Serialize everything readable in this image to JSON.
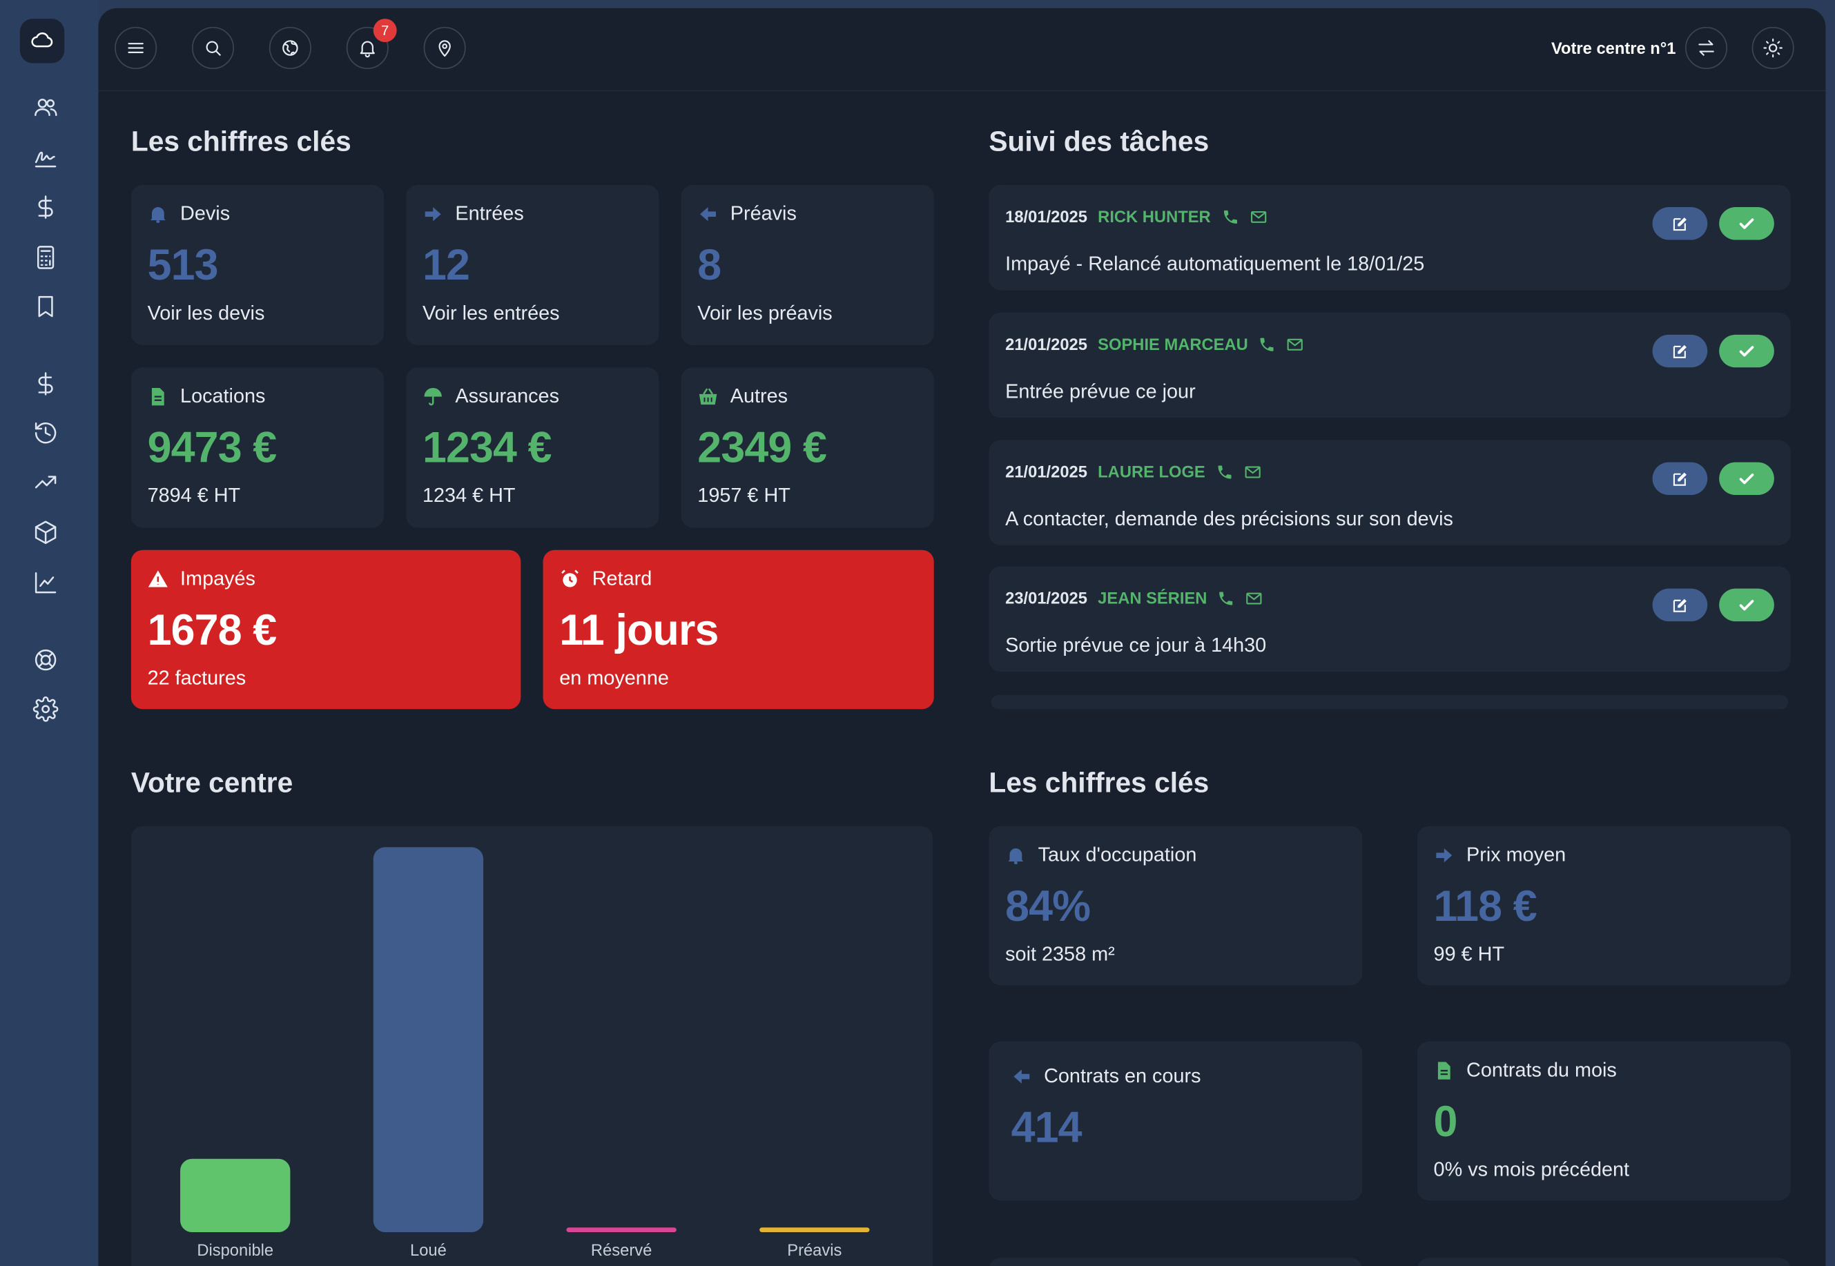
{
  "topbar": {
    "notifications_count": "7",
    "center_name": "Votre centre n°1"
  },
  "sections": {
    "key_figures_title": "Les chiffres clés",
    "tasks_title": "Suivi des tâches",
    "center_title": "Votre centre",
    "key_figures_title_2": "Les chiffres clés"
  },
  "kpis": [
    {
      "label": "Devis",
      "value": "513",
      "sub": "Voir les devis"
    },
    {
      "label": "Entrées",
      "value": "12",
      "sub": "Voir les entrées"
    },
    {
      "label": "Préavis",
      "value": "8",
      "sub": "Voir les préavis"
    },
    {
      "label": "Locations",
      "value": "9473 €",
      "sub": "7894 € HT"
    },
    {
      "label": "Assurances",
      "value": "1234 €",
      "sub": "1234 € HT"
    },
    {
      "label": "Autres",
      "value": "2349 €",
      "sub": "1957 € HT"
    },
    {
      "label": "Impayés",
      "value": "1678 €",
      "sub": "22 factures"
    },
    {
      "label": "Retard",
      "value": "11 jours",
      "sub": "en moyenne"
    }
  ],
  "tasks": [
    {
      "date": "18/01/2025",
      "name": "RICK HUNTER",
      "text": "Impayé - Relancé automatiquement le 18/01/25"
    },
    {
      "date": "21/01/2025",
      "name": "SOPHIE MARCEAU",
      "text": "Entrée prévue ce jour"
    },
    {
      "date": "21/01/2025",
      "name": "LAURE LOGE",
      "text": "A contacter, demande des précisions sur son devis"
    },
    {
      "date": "23/01/2025",
      "name": "JEAN SÉRIEN",
      "text": "Sortie prévue ce jour à 14h30"
    }
  ],
  "stats": [
    {
      "label": "Taux d'occupation",
      "value": "84%",
      "sub": "soit 2358 m²"
    },
    {
      "label": "Prix moyen",
      "value": "118 €",
      "sub": "99 € HT"
    },
    {
      "label": "Contrats en cours",
      "value": "414",
      "sub": ""
    },
    {
      "label": "Contrats du mois",
      "value": "0",
      "sub": "0% vs mois précédent"
    }
  ],
  "chart_data": {
    "type": "bar",
    "categories": [
      "Disponible",
      "Loué",
      "Réservé",
      "Préavis"
    ],
    "values": [
      16,
      84,
      0,
      0
    ],
    "colors": [
      "#5fc46c",
      "#3f5c8d",
      "#d94695",
      "#e2b431"
    ],
    "ylim": [
      0,
      84
    ],
    "title": "",
    "xlabel": "",
    "ylabel": ""
  },
  "colors": {
    "accent_blue": "#4566a0",
    "accent_green": "#55b46c",
    "alert_red": "#d32223",
    "background": "#19202d",
    "sidebar": "#2b3f60"
  }
}
